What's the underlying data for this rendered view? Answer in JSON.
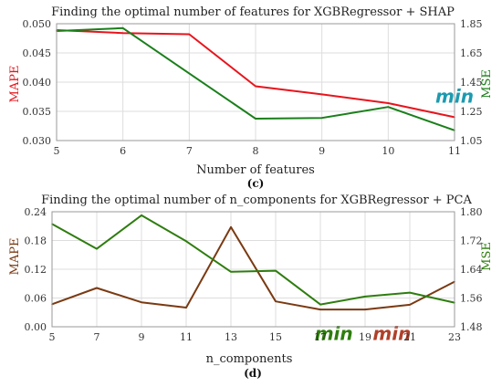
{
  "chart_data": [
    {
      "type": "line",
      "title": "Finding the optimal number of features for XGBRegressor + SHAP",
      "xlabel": "Number of features",
      "ylabel_left": "MAPE",
      "ylabel_right": "MSE",
      "panel_label": "(c)",
      "x": [
        5,
        6,
        7,
        8,
        9,
        10,
        11
      ],
      "xlim": [
        5,
        11
      ],
      "xticks": [
        "5",
        "6",
        "7",
        "8",
        "9",
        "10",
        "11"
      ],
      "ylim_left": [
        0.03,
        0.05
      ],
      "yticks_left": [
        "0.030",
        "0.035",
        "0.040",
        "0.045",
        "0.050"
      ],
      "ylim_right": [
        1.05,
        1.85
      ],
      "yticks_right": [
        "1.05",
        "1.25",
        "1.45",
        "1.65",
        "1.85"
      ],
      "grid": true,
      "series": [
        {
          "axis": "left",
          "color": "#e8141c",
          "values": [
            0.0489,
            0.0484,
            0.0482,
            0.0393,
            0.0379,
            0.0364,
            0.034
          ]
        },
        {
          "axis": "right",
          "color": "#1a7f1a",
          "values": [
            1.8,
            1.82,
            1.51,
            1.2,
            1.205,
            1.28,
            1.12
          ]
        }
      ],
      "annotations": [
        {
          "text": "min",
          "x": 11.0,
          "y_axis": "right",
          "y": 1.31,
          "color": "#1b9ab0"
        }
      ]
    },
    {
      "type": "line",
      "title": "Finding the optimal number of n_components for XGBRegressor + PCA",
      "xlabel": "n_components",
      "ylabel_left": "MAPE",
      "ylabel_right": "MSE",
      "panel_label": "(d)",
      "x": [
        5,
        7,
        9,
        11,
        13,
        15,
        17,
        19,
        21,
        23
      ],
      "xlim": [
        5,
        23
      ],
      "xticks": [
        "5",
        "7",
        "9",
        "11",
        "13",
        "15",
        "17",
        "19",
        "21",
        "23"
      ],
      "ylim_left": [
        0.0,
        0.24
      ],
      "yticks_left": [
        "0.00",
        "0.06",
        "0.12",
        "0.18",
        "0.24"
      ],
      "ylim_right": [
        1.48,
        1.8
      ],
      "yticks_right": [
        "1.48",
        "1.56",
        "1.64",
        "1.72",
        "1.80"
      ],
      "grid": true,
      "series": [
        {
          "axis": "left",
          "color": "#7a3a12",
          "values": [
            0.047,
            0.081,
            0.051,
            0.04,
            0.208,
            0.053,
            0.036,
            0.036,
            0.046,
            0.094
          ]
        },
        {
          "axis": "right",
          "color": "#2e7d0e",
          "values": [
            1.766,
            1.697,
            1.79,
            1.718,
            1.633,
            1.636,
            1.542,
            1.564,
            1.575,
            1.547
          ]
        }
      ],
      "annotations": [
        {
          "text": "min",
          "x": 17.6,
          "y_axis": "left",
          "y": -0.028,
          "color": "#2e7d0e"
        },
        {
          "text": "min",
          "x": 20.2,
          "y_axis": "left",
          "y": -0.028,
          "color": "#b0402a"
        }
      ]
    }
  ]
}
